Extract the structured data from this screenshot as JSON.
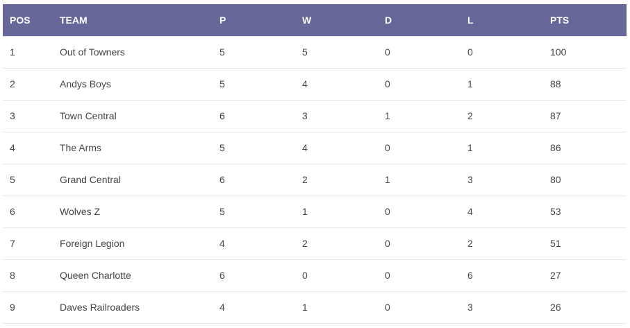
{
  "header_color": "#666699",
  "columns": [
    "POS",
    "TEAM",
    "P",
    "W",
    "D",
    "L",
    "PTS"
  ],
  "rows": [
    [
      "1",
      "Out of Towners",
      "5",
      "5",
      "0",
      "0",
      "100"
    ],
    [
      "2",
      "Andys Boys",
      "5",
      "4",
      "0",
      "1",
      "88"
    ],
    [
      "3",
      "Town Central",
      "6",
      "3",
      "1",
      "2",
      "87"
    ],
    [
      "4",
      "The Arms",
      "5",
      "4",
      "0",
      "1",
      "86"
    ],
    [
      "5",
      "Grand Central",
      "6",
      "2",
      "1",
      "3",
      "80"
    ],
    [
      "6",
      "Wolves Z",
      "5",
      "1",
      "0",
      "4",
      "53"
    ],
    [
      "7",
      "Foreign Legion",
      "4",
      "2",
      "0",
      "2",
      "51"
    ],
    [
      "8",
      "Queen Charlotte",
      "6",
      "0",
      "0",
      "6",
      "27"
    ],
    [
      "9",
      "Daves Railroaders",
      "4",
      "1",
      "0",
      "3",
      "26"
    ]
  ]
}
